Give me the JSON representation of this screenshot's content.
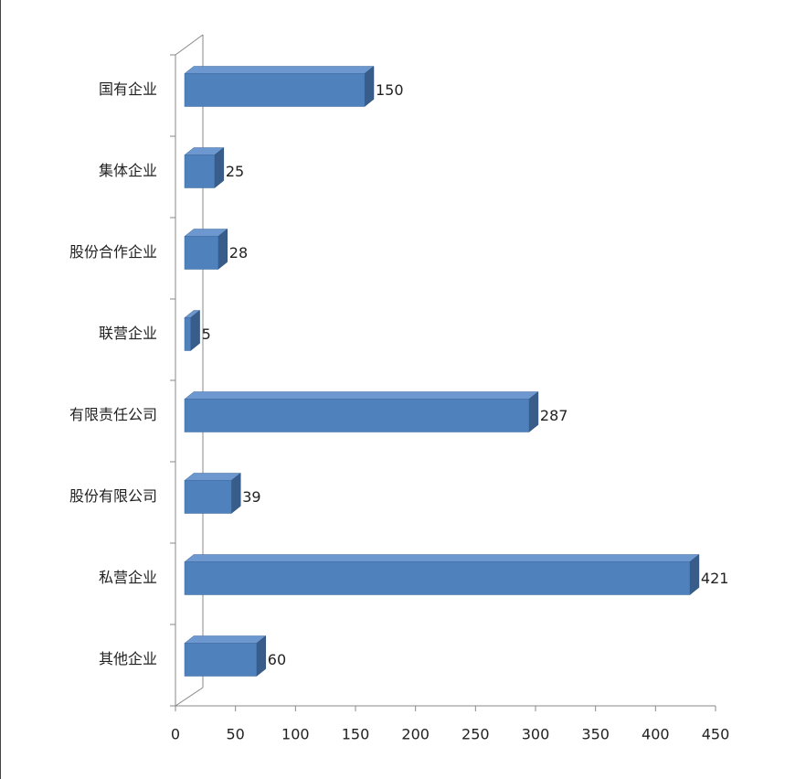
{
  "chart_data": {
    "type": "bar",
    "orientation": "horizontal",
    "three_d": true,
    "categories": [
      "国有企业",
      "集体企业",
      "股份合作企业",
      "联营企业",
      "有限责任公司",
      "股份有限公司",
      "私营企业",
      "其他企业"
    ],
    "values": [
      150,
      25,
      28,
      5,
      287,
      39,
      421,
      60
    ],
    "color": "#4f81bd",
    "xlim": [
      0,
      450
    ],
    "xticks": [
      0,
      50,
      100,
      150,
      200,
      250,
      300,
      350,
      400,
      450
    ],
    "grid": false
  }
}
